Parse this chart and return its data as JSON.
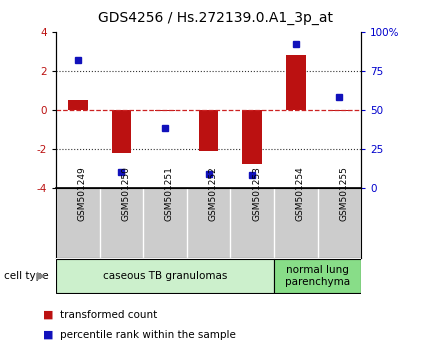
{
  "title": "GDS4256 / Hs.272139.0.A1_3p_at",
  "samples": [
    "GSM501249",
    "GSM501250",
    "GSM501251",
    "GSM501252",
    "GSM501253",
    "GSM501254",
    "GSM501255"
  ],
  "transformed_counts": [
    0.5,
    -2.2,
    -0.05,
    -2.1,
    -2.8,
    2.8,
    -0.05
  ],
  "percentile_ranks": [
    82,
    10,
    38,
    9,
    8,
    92,
    58
  ],
  "bar_color": "#bb1111",
  "dot_color": "#1111bb",
  "ylim_left": [
    -4,
    4
  ],
  "yticks_left": [
    -4,
    -2,
    0,
    2,
    4
  ],
  "yticks_right_vals": [
    0,
    25,
    50,
    75,
    100
  ],
  "yticks_right_labels": [
    "0",
    "25",
    "50",
    "75",
    "100%"
  ],
  "dotted_lines": [
    2,
    -2
  ],
  "zero_line_color": "#cc2222",
  "dotted_line_color": "#333333",
  "cell_type_groups": [
    {
      "label": "caseous TB granulomas",
      "start": 0,
      "end": 4,
      "color": "#ccf0cc"
    },
    {
      "label": "normal lung\nparenchyma",
      "start": 5,
      "end": 6,
      "color": "#88dd88"
    }
  ],
  "cell_type_label": "cell type",
  "legend_items": [
    {
      "color": "#bb1111",
      "label": "transformed count"
    },
    {
      "color": "#1111bb",
      "label": "percentile rank within the sample"
    }
  ],
  "bg_color": "#ffffff",
  "names_bg_color": "#cccccc",
  "bar_width": 0.45,
  "tick_label_fontsize": 7.5,
  "title_fontsize": 10,
  "sample_fontsize": 6.5,
  "cell_type_fontsize": 7.5,
  "legend_fontsize": 7.5
}
